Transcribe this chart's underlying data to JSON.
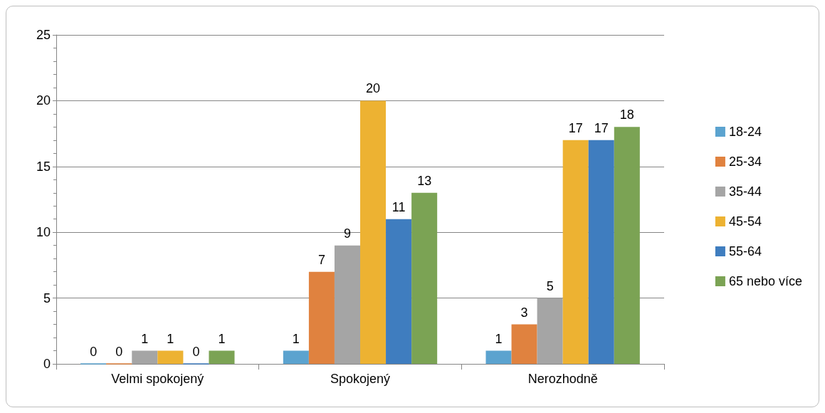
{
  "chart_data": {
    "type": "bar",
    "categories": [
      "Velmi spokojený",
      "Spokojený",
      "Nerozhodně"
    ],
    "series": [
      {
        "name": "18-24",
        "color": "#5ba3cf",
        "values": [
          0,
          1,
          1
        ]
      },
      {
        "name": "25-34",
        "color": "#e0823f",
        "values": [
          0,
          7,
          3
        ]
      },
      {
        "name": "35-44",
        "color": "#a5a5a5",
        "values": [
          1,
          9,
          5
        ]
      },
      {
        "name": "45-54",
        "color": "#edb232",
        "values": [
          1,
          20,
          17
        ]
      },
      {
        "name": "55-64",
        "color": "#3f7dbf",
        "values": [
          0,
          11,
          17
        ]
      },
      {
        "name": "65 nebo více",
        "color": "#7ba354",
        "values": [
          1,
          13,
          18
        ]
      }
    ],
    "ylim": [
      0,
      25
    ],
    "yticks": [
      0,
      5,
      10,
      15,
      20,
      25
    ],
    "grid": "y",
    "legend": "right",
    "data_labels": true
  }
}
